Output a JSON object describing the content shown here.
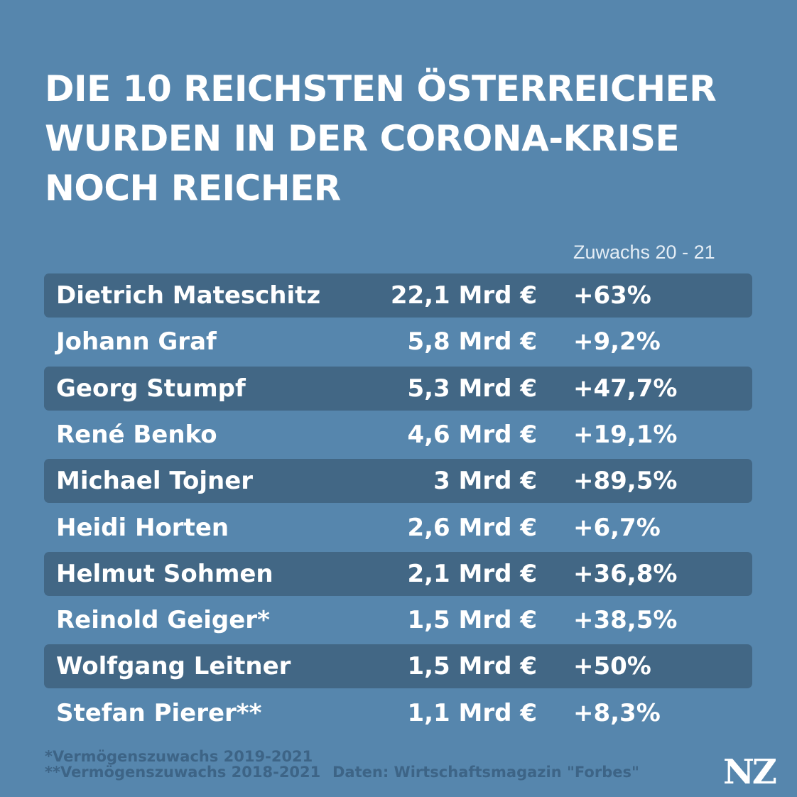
{
  "title_lines": [
    "DIE 10 REICHSTEN ÖSTERREICHER",
    "WURDEN IN DER CORONA-KRISE",
    "NOCH REICHER"
  ],
  "column_header": "Zuwachs 20 - 21",
  "chart_data": {
    "type": "table",
    "rows": [
      {
        "name": "Dietrich Mateschitz",
        "wealth": "22,1 Mrd €",
        "growth": "+63%"
      },
      {
        "name": "Johann Graf",
        "wealth": "5,8 Mrd €",
        "growth": "+9,2%"
      },
      {
        "name": "Georg Stumpf",
        "wealth": "5,3 Mrd €",
        "growth": "+47,7%"
      },
      {
        "name": "René Benko",
        "wealth": "4,6 Mrd €",
        "growth": "+19,1%"
      },
      {
        "name": "Michael Tojner",
        "wealth": "3 Mrd €",
        "growth": "+89,5%"
      },
      {
        "name": "Heidi Horten",
        "wealth": "2,6 Mrd €",
        "growth": "+6,7%"
      },
      {
        "name": "Helmut Sohmen",
        "wealth": "2,1 Mrd €",
        "growth": "+36,8%"
      },
      {
        "name": "Reinold Geiger*",
        "wealth": "1,5 Mrd €",
        "growth": "+38,5%"
      },
      {
        "name": "Wolfgang Leitner",
        "wealth": "1,5 Mrd €",
        "growth": "+50%"
      },
      {
        "name": "Stefan Pierer**",
        "wealth": "1,1 Mrd €",
        "growth": "+8,3%"
      }
    ]
  },
  "footnotes": [
    "*Vermögenszuwachs 2019-2021",
    "**Vermögenszuwachs 2018-2021"
  ],
  "source": "Daten: Wirtschaftsmagazin \"Forbes\"",
  "logo": "NZ",
  "colors": {
    "background": "#5686ad",
    "row_band": "#426785",
    "footnote_text": "#3d6486",
    "text": "#ffffff"
  }
}
